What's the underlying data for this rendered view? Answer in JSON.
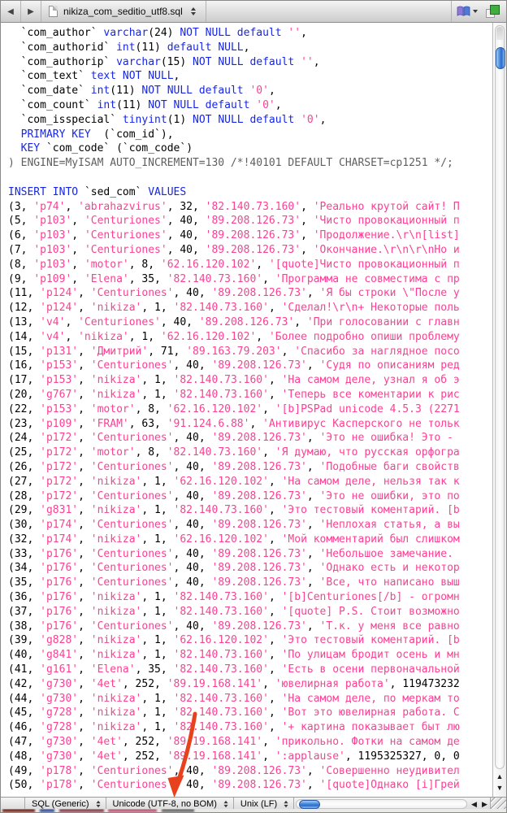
{
  "window": {
    "filename": "nikiza_com_seditio_utf8.sql"
  },
  "toolbar": {
    "back_icon": "◀",
    "forward_icon": "▶"
  },
  "icons": {
    "scroll_up": "▲",
    "scroll_down": "▼",
    "scroll_left": "◀",
    "scroll_right": "▶"
  },
  "colors": {
    "keyword": "#1626e9",
    "string": "#fc4094",
    "comment": "#5f5f5f",
    "plain": "#000000",
    "annotation_arrow": "#e8411d",
    "scrollbar_thumb": "#4c8ede"
  },
  "status_bar": {
    "language": "SQL (Generic)",
    "encoding": "Unicode (UTF-8, no BOM)",
    "line_endings": "Unix (LF)"
  },
  "editor": {
    "keywords": [
      "varchar",
      "tinyint",
      "int",
      "text",
      "NOT",
      "NULL",
      "default",
      "PRIMARY",
      "KEY",
      "INSERT",
      "INTO",
      "VALUES"
    ],
    "gray_lines": [
      9
    ],
    "lines": [
      "  `com_author` varchar(24) NOT NULL default '',",
      "  `com_authorid` int(11) default NULL,",
      "  `com_authorip` varchar(15) NOT NULL default '',",
      "  `com_text` text NOT NULL,",
      "  `com_date` int(11) NOT NULL default '0',",
      "  `com_count` int(11) NOT NULL default '0',",
      "  `com_isspecial` tinyint(1) NOT NULL default '0',",
      "  PRIMARY KEY  (`com_id`),",
      "  KEY `com_code` (`com_code`)",
      ") ENGINE=MyISAM AUTO_INCREMENT=130 /*!40101 DEFAULT CHARSET=cp1251 */;",
      "",
      "INSERT INTO `sed_com` VALUES",
      "(3, 'p74', 'abrahazvirus', 32, '82.140.73.160', 'Реально крутой сайт! П",
      "(5, 'p103', 'Centuriones', 40, '89.208.126.73', 'Чисто провокационный п",
      "(6, 'p103', 'Centuriones', 40, '89.208.126.73', 'Продолжение.\\r\\n[list]",
      "(7, 'p103', 'Centuriones', 40, '89.208.126.73', 'Окончание.\\r\\n\\r\\nНо и",
      "(8, 'p103', 'motor', 8, '62.16.120.102', '[quote]Чисто провокационный п",
      "(9, 'p109', 'Elena', 35, '82.140.73.160', 'Программа не совместима с пр",
      "(11, 'p124', 'Centuriones', 40, '89.208.126.73', 'Я бы строки \\\"После у",
      "(12, 'p124', 'nikiza', 1, '82.140.73.160', 'Сделал!\\r\\n+ Некоторые поль",
      "(13, 'v4', 'Centuriones', 40, '89.208.126.73', 'При голосовании с главн",
      "(14, 'v4', 'nikiza', 1, '62.16.120.102', 'Более подробно опиши проблему",
      "(15, 'p131', 'Дмитрий', 71, '89.163.79.203', 'Спасибо за наглядное посо",
      "(16, 'p153', 'Centuriones', 40, '89.208.126.73', 'Судя по описаниям ред",
      "(17, 'p153', 'nikiza', 1, '82.140.73.160', 'На самом деле, узнал я об э",
      "(20, 'g767', 'nikiza', 1, '82.140.73.160', 'Теперь все коментарии к рис",
      "(22, 'p153', 'motor', 8, '62.16.120.102', '[b]PSPad unicode 4.5.3 (2271",
      "(23, 'p109', 'FRAM', 63, '91.124.6.88', 'Антивирус Касперского не тольк",
      "(24, 'p172', 'Centuriones', 40, '89.208.126.73', 'Это не ошибка! Это -",
      "(25, 'p172', 'motor', 8, '82.140.73.160', 'Я думаю, что русская орфогра",
      "(26, 'p172', 'Centuriones', 40, '89.208.126.73', 'Подобные баги свойств",
      "(27, 'p172', 'nikiza', 1, '62.16.120.102', 'На самом деле, нельзя так к",
      "(28, 'p172', 'Centuriones', 40, '89.208.126.73', 'Это не ошибки, это по",
      "(29, 'g831', 'nikiza', 1, '82.140.73.160', 'Это тестовый коментарий. [b",
      "(30, 'p174', 'Centuriones', 40, '89.208.126.73', 'Неплохая статья, а вы",
      "(32, 'p174', 'nikiza', 1, '62.16.120.102', 'Мой комментарий был слишком",
      "(33, 'p176', 'Centuriones', 40, '89.208.126.73', 'Небольшое замечание. ",
      "(34, 'p176', 'Centuriones', 40, '89.208.126.73', 'Однако есть и некотор",
      "(35, 'p176', 'Centuriones', 40, '89.208.126.73', 'Все, что написано выш",
      "(36, 'p176', 'nikiza', 1, '82.140.73.160', '[b]Centuriones[/b] - огромн",
      "(37, 'p176', 'nikiza', 1, '82.140.73.160', '[quote] P.S. Стоит возможно",
      "(38, 'p176', 'Centuriones', 40, '89.208.126.73', 'Т.к. у меня все равно",
      "(39, 'g828', 'nikiza', 1, '62.16.120.102', 'Это тестовый коментарий. [b",
      "(40, 'g841', 'nikiza', 1, '82.140.73.160', 'По улицам бродит осень и мн",
      "(41, 'g161', 'Elena', 35, '82.140.73.160', 'Есть в осени первоначальной",
      "(42, 'g730', '4et', 252, '89.19.168.141', 'ювелирная работа', 119473232",
      "(44, 'g730', 'nikiza', 1, '82.140.73.160', 'На самом деле, по меркам то",
      "(45, 'g728', 'nikiza', 1, '82.140.73.160', 'Вот это ювелирная работа. С",
      "(46, 'g728', 'nikiza', 1, '82.140.73.160', '+ картина показывает быт лю",
      "(47, 'g730', '4et', 252, '89.19.168.141', 'прикольно. Фотки на самом де",
      "(48, 'g730', '4et', 252, '89.19.168.141', ':applause', 1195325327, 0, 0",
      "(49, 'p178', 'Centuriones', 40, '89.208.126.73', 'Совершенно неудивител",
      "(50, 'p178', 'Centuriones', 40, '89.208.126.73', '[quote]Однако [i]Грей"
    ]
  }
}
